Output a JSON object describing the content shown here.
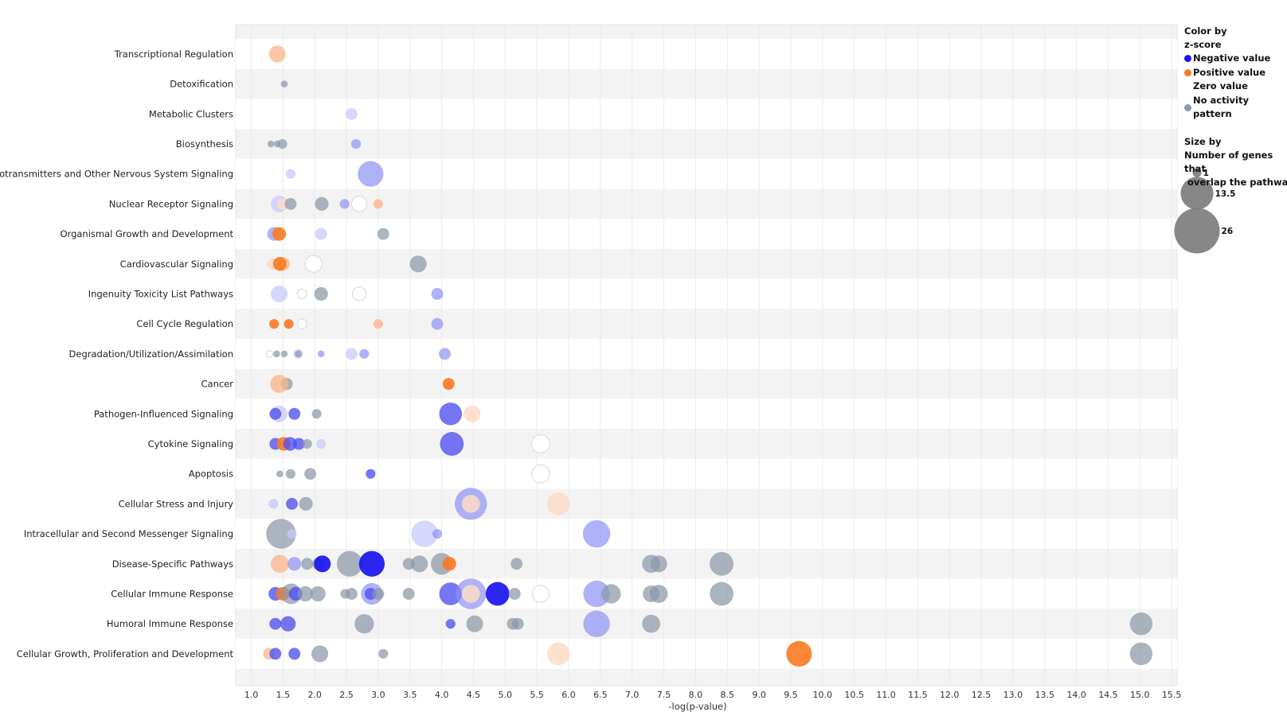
{
  "chart_data": {
    "type": "scatter",
    "xlabel": "-log(p-value)",
    "xlim": [
      0.85,
      15.7
    ],
    "xticks": [
      "1.0",
      "1.5",
      "2.0",
      "2.5",
      "3.0",
      "3.5",
      "4.0",
      "4.5",
      "5.0",
      "5.5",
      "6.0",
      "6.5",
      "7.0",
      "7.5",
      "8.0",
      "8.5",
      "9.0",
      "9.5",
      "10.0",
      "10.5",
      "11.0",
      "11.5",
      "12.0",
      "12.5",
      "13.0",
      "13.5",
      "14.0",
      "14.5",
      "15.0",
      "15.5"
    ],
    "categories": [
      "Transcriptional Regulation",
      "Detoxification",
      "Metabolic Clusters",
      "Biosynthesis",
      "Neurotransmitters and Other Nervous System Signaling",
      "Nuclear Receptor Signaling",
      "Organismal Growth and Development",
      "Cardiovascular Signaling",
      "Ingenuity Toxicity List Pathways",
      "Cell Cycle Regulation",
      "Degradation/Utilization/Assimilation",
      "Cancer",
      "Pathogen-Influenced Signaling",
      "Cytokine Signaling",
      "Apoptosis",
      "Cellular Stress and Injury",
      "Intracellular and Second Messenger Signaling",
      "Disease-Specific Pathways",
      "Cellular Immune Response",
      "Humoral Immune Response",
      "Cellular Growth, Proliferation and Development"
    ],
    "colors": {
      "neg_strong": "#1a14f0",
      "neg_medium": "#4d4ff0",
      "neg_light": "#8f92f5",
      "neg_pale": "#c7c9fb",
      "pos_strong": "#f97a22",
      "pos_light": "#fbb488",
      "pos_pale": "#fcdcc5",
      "zero": "#ffffff",
      "none": "#8c97a8"
    },
    "points": [
      {
        "cat": 0,
        "x": 1.41,
        "n": 6,
        "c": "pos_light"
      },
      {
        "cat": 1,
        "x": 1.52,
        "n": 1,
        "c": "none"
      },
      {
        "cat": 2,
        "x": 2.58,
        "n": 3,
        "c": "neg_pale"
      },
      {
        "cat": 3,
        "x": 1.31,
        "n": 1,
        "c": "none"
      },
      {
        "cat": 3,
        "x": 1.41,
        "n": 1,
        "c": "none"
      },
      {
        "cat": 3,
        "x": 1.49,
        "n": 2,
        "c": "none"
      },
      {
        "cat": 3,
        "x": 2.65,
        "n": 2,
        "c": "neg_light"
      },
      {
        "cat": 4,
        "x": 1.62,
        "n": 2,
        "c": "neg_pale"
      },
      {
        "cat": 4,
        "x": 2.88,
        "n": 14,
        "c": "neg_light"
      },
      {
        "cat": 5,
        "x": 1.44,
        "n": 6,
        "c": "neg_pale"
      },
      {
        "cat": 5,
        "x": 1.5,
        "n": 3,
        "c": "pos_pale"
      },
      {
        "cat": 5,
        "x": 1.62,
        "n": 3,
        "c": "none"
      },
      {
        "cat": 5,
        "x": 2.11,
        "n": 4,
        "c": "none"
      },
      {
        "cat": 5,
        "x": 2.47,
        "n": 2,
        "c": "neg_light"
      },
      {
        "cat": 5,
        "x": 2.7,
        "n": 5,
        "c": "zero"
      },
      {
        "cat": 5,
        "x": 3.0,
        "n": 2,
        "c": "pos_light"
      },
      {
        "cat": 6,
        "x": 1.36,
        "n": 4,
        "c": "neg_light"
      },
      {
        "cat": 6,
        "x": 1.44,
        "n": 4,
        "c": "pos_strong"
      },
      {
        "cat": 6,
        "x": 2.1,
        "n": 3,
        "c": "neg_pale"
      },
      {
        "cat": 6,
        "x": 3.08,
        "n": 3,
        "c": "none"
      },
      {
        "cat": 7,
        "x": 1.34,
        "n": 3,
        "c": "pos_pale"
      },
      {
        "cat": 7,
        "x": 1.5,
        "n": 4,
        "c": "pos_light"
      },
      {
        "cat": 7,
        "x": 1.45,
        "n": 4,
        "c": "pos_strong"
      },
      {
        "cat": 7,
        "x": 1.98,
        "n": 6,
        "c": "zero"
      },
      {
        "cat": 7,
        "x": 3.63,
        "n": 6,
        "c": "none"
      },
      {
        "cat": 8,
        "x": 1.44,
        "n": 6,
        "c": "neg_pale"
      },
      {
        "cat": 8,
        "x": 1.8,
        "n": 2,
        "c": "zero"
      },
      {
        "cat": 8,
        "x": 2.1,
        "n": 4,
        "c": "none"
      },
      {
        "cat": 8,
        "x": 2.7,
        "n": 4,
        "c": "zero"
      },
      {
        "cat": 8,
        "x": 3.93,
        "n": 3,
        "c": "neg_light"
      },
      {
        "cat": 9,
        "x": 1.36,
        "n": 2,
        "c": "pos_strong"
      },
      {
        "cat": 9,
        "x": 1.59,
        "n": 2,
        "c": "pos_strong"
      },
      {
        "cat": 9,
        "x": 1.8,
        "n": 2,
        "c": "zero"
      },
      {
        "cat": 9,
        "x": 3.0,
        "n": 2,
        "c": "pos_light"
      },
      {
        "cat": 9,
        "x": 3.93,
        "n": 3,
        "c": "neg_light"
      },
      {
        "cat": 10,
        "x": 1.29,
        "n": 1,
        "c": "zero"
      },
      {
        "cat": 10,
        "x": 1.4,
        "n": 1,
        "c": "none"
      },
      {
        "cat": 10,
        "x": 1.52,
        "n": 1,
        "c": "none"
      },
      {
        "cat": 10,
        "x": 1.74,
        "n": 2,
        "c": "neg_pale"
      },
      {
        "cat": 10,
        "x": 1.74,
        "n": 1,
        "c": "none"
      },
      {
        "cat": 10,
        "x": 2.1,
        "n": 1,
        "c": "neg_light"
      },
      {
        "cat": 10,
        "x": 2.58,
        "n": 3,
        "c": "neg_pale"
      },
      {
        "cat": 10,
        "x": 2.78,
        "n": 2,
        "c": "neg_light"
      },
      {
        "cat": 10,
        "x": 4.05,
        "n": 3,
        "c": "neg_light"
      },
      {
        "cat": 11,
        "x": 1.56,
        "n": 3,
        "c": "none"
      },
      {
        "cat": 11,
        "x": 1.44,
        "n": 7,
        "c": "pos_light"
      },
      {
        "cat": 11,
        "x": 4.11,
        "n": 3,
        "c": "pos_strong"
      },
      {
        "cat": 12,
        "x": 1.44,
        "n": 6,
        "c": "neg_pale"
      },
      {
        "cat": 12,
        "x": 1.38,
        "n": 3,
        "c": "neg_medium"
      },
      {
        "cat": 12,
        "x": 1.68,
        "n": 3,
        "c": "neg_medium"
      },
      {
        "cat": 12,
        "x": 2.03,
        "n": 2,
        "c": "none"
      },
      {
        "cat": 12,
        "x": 4.14,
        "n": 11,
        "c": "neg_medium"
      },
      {
        "cat": 12,
        "x": 4.48,
        "n": 6,
        "c": "pos_pale"
      },
      {
        "cat": 13,
        "x": 1.38,
        "n": 3,
        "c": "neg_medium"
      },
      {
        "cat": 13,
        "x": 1.51,
        "n": 4,
        "c": "pos_strong"
      },
      {
        "cat": 13,
        "x": 1.61,
        "n": 4,
        "c": "neg_medium"
      },
      {
        "cat": 13,
        "x": 1.75,
        "n": 3,
        "c": "neg_medium"
      },
      {
        "cat": 13,
        "x": 1.88,
        "n": 2,
        "c": "none"
      },
      {
        "cat": 13,
        "x": 2.1,
        "n": 2,
        "c": "neg_pale"
      },
      {
        "cat": 13,
        "x": 4.16,
        "n": 12,
        "c": "neg_medium"
      },
      {
        "cat": 13,
        "x": 5.56,
        "n": 7,
        "c": "zero"
      },
      {
        "cat": 14,
        "x": 1.45,
        "n": 1,
        "c": "none"
      },
      {
        "cat": 14,
        "x": 1.62,
        "n": 2,
        "c": "none"
      },
      {
        "cat": 14,
        "x": 1.93,
        "n": 3,
        "c": "none"
      },
      {
        "cat": 14,
        "x": 2.88,
        "n": 2,
        "c": "neg_medium"
      },
      {
        "cat": 14,
        "x": 5.56,
        "n": 7,
        "c": "zero"
      },
      {
        "cat": 15,
        "x": 1.35,
        "n": 2,
        "c": "neg_pale"
      },
      {
        "cat": 15,
        "x": 1.64,
        "n": 3,
        "c": "neg_medium"
      },
      {
        "cat": 15,
        "x": 1.86,
        "n": 4,
        "c": "none"
      },
      {
        "cat": 15,
        "x": 4.46,
        "n": 22,
        "c": "neg_light"
      },
      {
        "cat": 15,
        "x": 4.46,
        "n": 7,
        "c": "pos_pale"
      },
      {
        "cat": 15,
        "x": 5.84,
        "n": 11,
        "c": "pos_pale"
      },
      {
        "cat": 16,
        "x": 1.47,
        "n": 19,
        "c": "none"
      },
      {
        "cat": 16,
        "x": 1.64,
        "n": 2,
        "c": "neg_pale"
      },
      {
        "cat": 16,
        "x": 3.73,
        "n": 15,
        "c": "neg_pale"
      },
      {
        "cat": 16,
        "x": 3.93,
        "n": 2,
        "c": "neg_light"
      },
      {
        "cat": 16,
        "x": 6.44,
        "n": 16,
        "c": "neg_light"
      },
      {
        "cat": 17,
        "x": 1.45,
        "n": 7,
        "c": "pos_light"
      },
      {
        "cat": 17,
        "x": 1.68,
        "n": 4,
        "c": "neg_light"
      },
      {
        "cat": 17,
        "x": 1.88,
        "n": 3,
        "c": "none"
      },
      {
        "cat": 17,
        "x": 2.05,
        "n": 3,
        "c": "none"
      },
      {
        "cat": 17,
        "x": 2.12,
        "n": 6,
        "c": "neg_strong"
      },
      {
        "cat": 17,
        "x": 2.55,
        "n": 14,
        "c": "none"
      },
      {
        "cat": 17,
        "x": 2.9,
        "n": 14,
        "c": "neg_strong"
      },
      {
        "cat": 17,
        "x": 3.48,
        "n": 3,
        "c": "none"
      },
      {
        "cat": 17,
        "x": 3.65,
        "n": 6,
        "c": "none"
      },
      {
        "cat": 17,
        "x": 4.0,
        "n": 10,
        "c": "none"
      },
      {
        "cat": 17,
        "x": 4.12,
        "n": 4,
        "c": "pos_strong"
      },
      {
        "cat": 17,
        "x": 5.18,
        "n": 3,
        "c": "none"
      },
      {
        "cat": 17,
        "x": 7.3,
        "n": 7,
        "c": "none"
      },
      {
        "cat": 17,
        "x": 7.42,
        "n": 6,
        "c": "none"
      },
      {
        "cat": 17,
        "x": 8.41,
        "n": 12,
        "c": "none"
      },
      {
        "cat": 18,
        "x": 1.38,
        "n": 4,
        "c": "neg_medium"
      },
      {
        "cat": 18,
        "x": 1.5,
        "n": 4,
        "c": "pos_strong"
      },
      {
        "cat": 18,
        "x": 1.63,
        "n": 9,
        "c": "none"
      },
      {
        "cat": 18,
        "x": 1.7,
        "n": 4,
        "c": "neg_medium"
      },
      {
        "cat": 18,
        "x": 1.85,
        "n": 5,
        "c": "none"
      },
      {
        "cat": 18,
        "x": 2.05,
        "n": 5,
        "c": "none"
      },
      {
        "cat": 18,
        "x": 2.48,
        "n": 2,
        "c": "none"
      },
      {
        "cat": 18,
        "x": 2.58,
        "n": 3,
        "c": "none"
      },
      {
        "cat": 18,
        "x": 2.9,
        "n": 10,
        "c": "neg_light"
      },
      {
        "cat": 18,
        "x": 2.88,
        "n": 3,
        "c": "neg_medium"
      },
      {
        "cat": 18,
        "x": 3.0,
        "n": 3,
        "c": "none"
      },
      {
        "cat": 18,
        "x": 3.48,
        "n": 3,
        "c": "none"
      },
      {
        "cat": 18,
        "x": 4.14,
        "n": 11,
        "c": "neg_medium"
      },
      {
        "cat": 18,
        "x": 4.46,
        "n": 20,
        "c": "neg_light"
      },
      {
        "cat": 18,
        "x": 4.46,
        "n": 7,
        "c": "pos_pale"
      },
      {
        "cat": 18,
        "x": 4.88,
        "n": 12,
        "c": "neg_strong"
      },
      {
        "cat": 18,
        "x": 5.15,
        "n": 3,
        "c": "none"
      },
      {
        "cat": 18,
        "x": 5.56,
        "n": 6,
        "c": "zero"
      },
      {
        "cat": 18,
        "x": 6.44,
        "n": 15,
        "c": "neg_light"
      },
      {
        "cat": 18,
        "x": 6.67,
        "n": 8,
        "c": "none"
      },
      {
        "cat": 18,
        "x": 7.3,
        "n": 6,
        "c": "none"
      },
      {
        "cat": 18,
        "x": 7.42,
        "n": 7,
        "c": "none"
      },
      {
        "cat": 18,
        "x": 8.41,
        "n": 12,
        "c": "none"
      },
      {
        "cat": 19,
        "x": 1.38,
        "n": 3,
        "c": "neg_medium"
      },
      {
        "cat": 19,
        "x": 1.58,
        "n": 5,
        "c": "neg_medium"
      },
      {
        "cat": 19,
        "x": 2.78,
        "n": 8,
        "c": "none"
      },
      {
        "cat": 19,
        "x": 4.14,
        "n": 2,
        "c": "neg_medium"
      },
      {
        "cat": 19,
        "x": 4.52,
        "n": 6,
        "c": "none"
      },
      {
        "cat": 19,
        "x": 5.12,
        "n": 3,
        "c": "none"
      },
      {
        "cat": 19,
        "x": 5.2,
        "n": 3,
        "c": "none"
      },
      {
        "cat": 19,
        "x": 6.44,
        "n": 15,
        "c": "neg_light"
      },
      {
        "cat": 19,
        "x": 7.3,
        "n": 7,
        "c": "none"
      },
      {
        "cat": 19,
        "x": 15.02,
        "n": 11,
        "c": "none"
      },
      {
        "cat": 20,
        "x": 1.28,
        "n": 3,
        "c": "pos_light"
      },
      {
        "cat": 20,
        "x": 1.38,
        "n": 3,
        "c": "neg_medium"
      },
      {
        "cat": 20,
        "x": 1.68,
        "n": 3,
        "c": "neg_medium"
      },
      {
        "cat": 20,
        "x": 2.08,
        "n": 6,
        "c": "none"
      },
      {
        "cat": 20,
        "x": 3.08,
        "n": 2,
        "c": "none"
      },
      {
        "cat": 20,
        "x": 5.84,
        "n": 11,
        "c": "pos_pale"
      },
      {
        "cat": 20,
        "x": 9.63,
        "n": 14,
        "c": "pos_strong"
      },
      {
        "cat": 20,
        "x": 15.02,
        "n": 11,
        "c": "none"
      }
    ]
  },
  "legend": {
    "color_title_1": "Color by",
    "color_title_2": "z-score",
    "items": [
      {
        "label": "Negative value",
        "color": "#1a14f0"
      },
      {
        "label": "Positive value",
        "color": "#f97a22"
      },
      {
        "label": "Zero value",
        "color": "#ffffff"
      },
      {
        "label": "No activity pattern",
        "color": "#8c97a8"
      }
    ],
    "size_title_1": "Size by",
    "size_title_2": "Number of genes that",
    "size_title_3": " overlap the pathway",
    "sizes": [
      1,
      13.5,
      26
    ]
  }
}
